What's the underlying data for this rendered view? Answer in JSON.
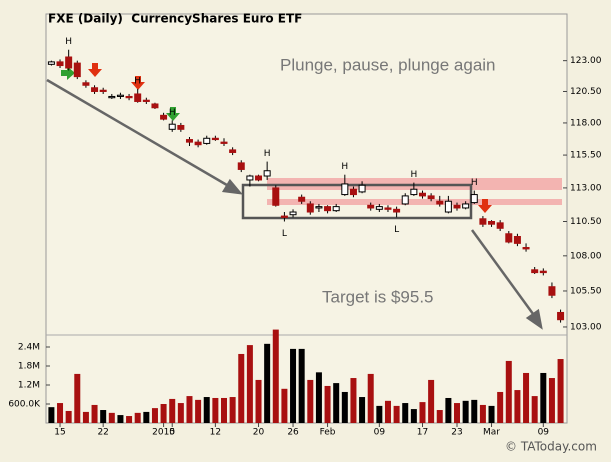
{
  "chart_data": {
    "type": "candlestick",
    "title": "FXE (Daily)  CurrencyShares Euro ETF",
    "annotations": [
      "Plunge, pause, plunge again",
      "Target is $95.5"
    ],
    "footer": "© TAToday.com",
    "log_scale": true,
    "up_color": "#ffffff",
    "down_color": "#a81010",
    "volume_up_color": "#000000",
    "volume_down_color": "#a81010",
    "categories": [
      null,
      "15",
      null,
      null,
      null,
      null,
      "22",
      null,
      null,
      null,
      null,
      null,
      null,
      "2010",
      "5",
      null,
      null,
      null,
      null,
      "12",
      null,
      null,
      null,
      null,
      "20",
      null,
      null,
      null,
      "26",
      null,
      null,
      null,
      "Feb",
      null,
      null,
      null,
      null,
      null,
      "09",
      null,
      null,
      null,
      null,
      "17",
      null,
      null,
      null,
      "23",
      null,
      null,
      null,
      "Mar",
      null,
      null,
      null,
      null,
      null,
      "09",
      null,
      null
    ],
    "swing_labels": [
      null,
      null,
      "H",
      null,
      null,
      null,
      null,
      null,
      null,
      null,
      "H",
      null,
      null,
      null,
      "H",
      null,
      null,
      null,
      null,
      null,
      null,
      null,
      null,
      null,
      null,
      "H",
      null,
      "L",
      null,
      null,
      null,
      null,
      null,
      null,
      "H",
      null,
      null,
      null,
      null,
      null,
      "L",
      null,
      "H",
      null,
      null,
      null,
      null,
      null,
      null,
      "H",
      null,
      null,
      null,
      null,
      null,
      null,
      null,
      null,
      null,
      null
    ],
    "open": [
      122.7,
      122.9,
      123.3,
      122.8,
      121.2,
      120.8,
      120.6,
      120.0,
      120.1,
      120.1,
      120.3,
      119.8,
      119.5,
      118.6,
      117.5,
      117.8,
      116.7,
      116.5,
      116.4,
      116.8,
      116.5,
      115.9,
      114.9,
      113.6,
      113.9,
      113.9,
      113.0,
      110.9,
      111.0,
      112.3,
      111.8,
      111.5,
      111.6,
      111.3,
      112.5,
      112.9,
      112.7,
      111.7,
      111.4,
      111.5,
      111.4,
      111.8,
      112.5,
      112.6,
      112.4,
      112.0,
      111.2,
      111.7,
      111.5,
      111.9,
      110.7,
      110.5,
      110.4,
      109.6,
      109.4,
      108.6,
      107.0,
      106.9,
      105.8,
      104.0
    ],
    "high": [
      123.0,
      123.1,
      123.9,
      123.0,
      121.4,
      121.0,
      120.8,
      120.3,
      120.4,
      120.3,
      120.7,
      120.0,
      119.6,
      118.8,
      118.2,
      118.0,
      116.9,
      116.7,
      117.0,
      117.0,
      116.8,
      116.1,
      115.1,
      114.0,
      114.0,
      115.0,
      113.2,
      111.2,
      111.4,
      112.5,
      112.0,
      111.8,
      111.7,
      111.8,
      114.0,
      113.1,
      113.5,
      111.9,
      111.8,
      111.7,
      111.6,
      112.6,
      113.4,
      112.8,
      112.6,
      112.4,
      112.4,
      111.9,
      112.0,
      112.8,
      110.9,
      110.6,
      110.6,
      109.8,
      109.6,
      108.9,
      107.2,
      107.1,
      106.1,
      104.2
    ],
    "low": [
      122.6,
      122.4,
      122.2,
      121.5,
      120.8,
      120.3,
      120.3,
      119.9,
      119.9,
      119.8,
      119.6,
      119.5,
      119.1,
      118.2,
      117.3,
      117.3,
      116.2,
      116.1,
      116.3,
      116.6,
      116.2,
      115.5,
      114.2,
      113.1,
      113.5,
      113.6,
      111.6,
      110.5,
      110.8,
      111.8,
      111.0,
      111.2,
      111.1,
      111.2,
      112.4,
      112.3,
      112.6,
      111.3,
      111.2,
      111.2,
      110.8,
      111.7,
      112.4,
      112.2,
      112.0,
      111.6,
      111.1,
      111.3,
      111.4,
      111.8,
      110.1,
      110.1,
      109.8,
      108.9,
      108.7,
      108.3,
      106.7,
      106.6,
      105.0,
      103.3
    ],
    "close": [
      122.9,
      122.6,
      122.4,
      121.7,
      121.0,
      120.5,
      120.5,
      120.1,
      120.2,
      120.0,
      119.7,
      119.7,
      119.2,
      118.3,
      117.9,
      117.5,
      116.5,
      116.3,
      116.8,
      116.7,
      116.4,
      115.7,
      114.4,
      113.9,
      113.6,
      114.3,
      111.7,
      110.8,
      111.2,
      112.0,
      111.2,
      111.6,
      111.3,
      111.6,
      113.3,
      112.5,
      113.2,
      111.5,
      111.6,
      111.4,
      111.2,
      112.4,
      112.9,
      112.4,
      112.2,
      111.8,
      112.0,
      111.5,
      111.8,
      112.5,
      110.3,
      110.3,
      110.0,
      109.0,
      108.9,
      108.5,
      106.8,
      106.8,
      105.2,
      103.5
    ],
    "volume": [
      500000,
      630000,
      380000,
      1550000,
      350000,
      570000,
      410000,
      320000,
      250000,
      220000,
      320000,
      350000,
      470000,
      600000,
      760000,
      630000,
      850000,
      730000,
      820000,
      790000,
      790000,
      820000,
      2180000,
      2460000,
      1360000,
      2500000,
      2950000,
      1080000,
      2340000,
      2340000,
      1360000,
      1600000,
      1170000,
      1260000,
      980000,
      1420000,
      820000,
      1550000,
      540000,
      700000,
      540000,
      630000,
      440000,
      660000,
      1360000,
      410000,
      790000,
      630000,
      700000,
      730000,
      570000,
      540000,
      980000,
      1960000,
      1040000,
      1580000,
      850000,
      1580000,
      1420000,
      2020000
    ],
    "ylim": [
      102.45,
      126.8
    ],
    "yticks": [
      {
        "value": 123,
        "label": "123.00"
      },
      {
        "value": 120.5,
        "label": "120.50"
      },
      {
        "value": 118,
        "label": "118.00"
      },
      {
        "value": 115.5,
        "label": "115.50"
      },
      {
        "value": 113,
        "label": "113.00"
      },
      {
        "value": 110.5,
        "label": "110.50"
      },
      {
        "value": 108,
        "label": "108.00"
      },
      {
        "value": 105.5,
        "label": "105.50"
      },
      {
        "value": 103,
        "label": "103.00"
      }
    ],
    "volume_ylim": [
      0,
      3000000
    ],
    "volume_yticks": [
      {
        "value": 2400000,
        "label": "2.4M"
      },
      {
        "value": 1800000,
        "label": "1.8M"
      },
      {
        "value": 1200000,
        "label": "1.2M"
      },
      {
        "value": 600000,
        "label": "600.0K"
      }
    ]
  }
}
